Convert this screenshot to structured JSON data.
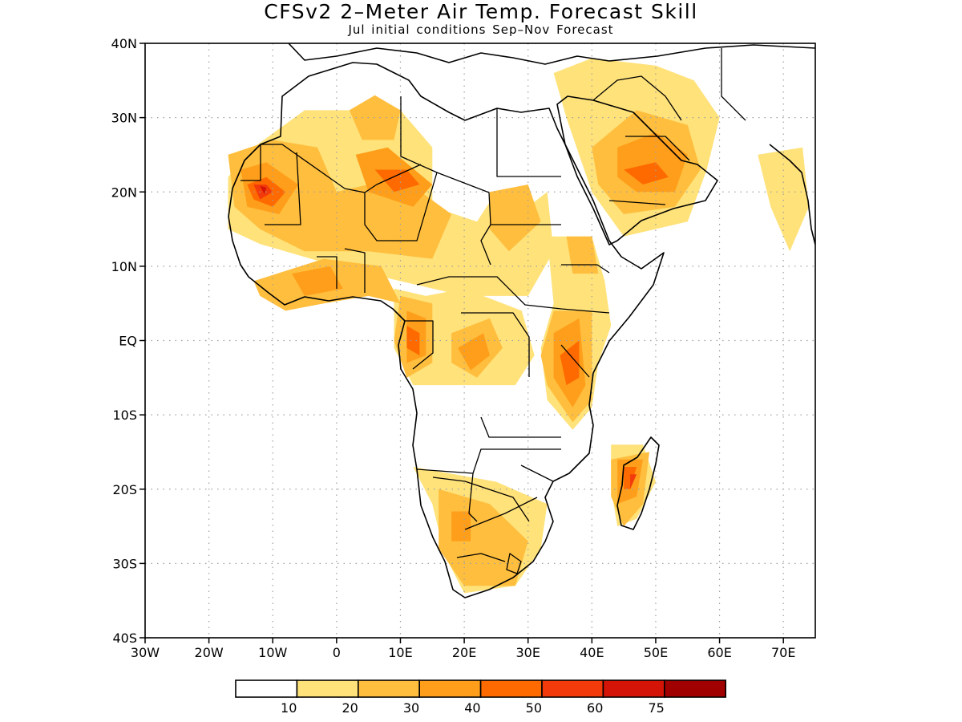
{
  "title": "CFSv2 2–Meter Air Temp. Forecast Skill",
  "subtitle": "Jul initial conditions   Sep–Nov Forecast",
  "map": {
    "region": "Africa",
    "lon_range": [
      -30,
      75
    ],
    "lat_range": [
      -40,
      40
    ],
    "lon_ticks": [
      -30,
      -20,
      -10,
      0,
      10,
      20,
      30,
      40,
      50,
      60,
      70
    ],
    "lon_tick_labels": [
      "30W",
      "20W",
      "10W",
      "0",
      "10E",
      "20E",
      "30E",
      "40E",
      "50E",
      "60E",
      "70E"
    ],
    "lat_ticks": [
      40,
      30,
      20,
      10,
      0,
      -10,
      -20,
      -30,
      -40
    ],
    "lat_tick_labels": [
      "40N",
      "30N",
      "20N",
      "10N",
      "EQ",
      "10S",
      "20S",
      "30S",
      "40S"
    ],
    "grid": "dotted"
  },
  "colorbar": {
    "boundaries": [
      "10",
      "20",
      "30",
      "40",
      "50",
      "60",
      "75"
    ],
    "colors": [
      "#ffffff",
      "#ffe27a",
      "#ffbe3d",
      "#ff9e1a",
      "#ff6a00",
      "#f23a0a",
      "#d41406",
      "#a10000"
    ]
  },
  "skill_regions": [
    {
      "level": 1,
      "points": [
        [
          -13,
          26
        ],
        [
          -5,
          31
        ],
        [
          10,
          31
        ],
        [
          15,
          26
        ],
        [
          15,
          18
        ],
        [
          22,
          16
        ],
        [
          25,
          20
        ],
        [
          27,
          16
        ],
        [
          33,
          20
        ],
        [
          34,
          12
        ],
        [
          30,
          6
        ],
        [
          20,
          6
        ],
        [
          10,
          8
        ],
        [
          0,
          10
        ],
        [
          -12,
          13
        ],
        [
          -17,
          15
        ],
        [
          -17,
          22
        ]
      ]
    },
    {
      "level": 1,
      "points": [
        [
          34,
          36
        ],
        [
          40,
          38
        ],
        [
          50,
          37
        ],
        [
          56,
          35
        ],
        [
          60,
          30
        ],
        [
          58,
          23
        ],
        [
          55,
          16
        ],
        [
          45,
          14
        ],
        [
          40,
          20
        ],
        [
          36,
          30
        ]
      ]
    },
    {
      "level": 1,
      "points": [
        [
          9,
          7
        ],
        [
          14,
          6
        ],
        [
          20,
          7
        ],
        [
          29,
          4
        ],
        [
          31,
          -2
        ],
        [
          28,
          -6
        ],
        [
          20,
          -6
        ],
        [
          12,
          -6
        ],
        [
          9,
          -1
        ]
      ]
    },
    {
      "level": 1,
      "points": [
        [
          33,
          14
        ],
        [
          40,
          14
        ],
        [
          42,
          8
        ],
        [
          43,
          2
        ],
        [
          41,
          -3
        ],
        [
          40,
          -9
        ],
        [
          37,
          -12
        ],
        [
          33,
          -8
        ],
        [
          32,
          -1
        ],
        [
          34,
          5
        ]
      ]
    },
    {
      "level": 1,
      "points": [
        [
          12,
          -17
        ],
        [
          25,
          -19
        ],
        [
          33,
          -22
        ],
        [
          32,
          -28
        ],
        [
          28,
          -33
        ],
        [
          20,
          -34
        ],
        [
          17,
          -29
        ],
        [
          15,
          -22
        ]
      ]
    },
    {
      "level": 1,
      "points": [
        [
          43,
          -14
        ],
        [
          48,
          -14
        ],
        [
          50,
          -19
        ],
        [
          47,
          -24
        ],
        [
          44,
          -25
        ],
        [
          43,
          -20
        ]
      ]
    },
    {
      "level": 1,
      "points": [
        [
          66,
          25
        ],
        [
          73,
          26
        ],
        [
          74,
          18
        ],
        [
          71,
          12
        ],
        [
          68,
          18
        ]
      ]
    },
    {
      "level": 2,
      "points": [
        [
          -17,
          25
        ],
        [
          -10,
          27
        ],
        [
          -3,
          26
        ],
        [
          0,
          20
        ],
        [
          10,
          22
        ],
        [
          18,
          17
        ],
        [
          15,
          11
        ],
        [
          5,
          12
        ],
        [
          -5,
          12
        ],
        [
          -12,
          15
        ],
        [
          -16,
          18
        ]
      ]
    },
    {
      "level": 2,
      "points": [
        [
          -13,
          8
        ],
        [
          -2,
          11
        ],
        [
          7,
          10
        ],
        [
          10,
          5
        ],
        [
          5,
          6
        ],
        [
          -2,
          5
        ],
        [
          -8,
          4
        ],
        [
          -12,
          6
        ]
      ]
    },
    {
      "level": 2,
      "points": [
        [
          2,
          31
        ],
        [
          6,
          33
        ],
        [
          10,
          31
        ],
        [
          9,
          27
        ],
        [
          4,
          27
        ]
      ]
    },
    {
      "level": 2,
      "points": [
        [
          40,
          26
        ],
        [
          47,
          31
        ],
        [
          55,
          29
        ],
        [
          57,
          23
        ],
        [
          53,
          18
        ],
        [
          45,
          17
        ],
        [
          41,
          21
        ]
      ]
    },
    {
      "level": 2,
      "points": [
        [
          36,
          14
        ],
        [
          40,
          14
        ],
        [
          41,
          9
        ],
        [
          37,
          9
        ]
      ]
    },
    {
      "level": 2,
      "points": [
        [
          34,
          4
        ],
        [
          40,
          4
        ],
        [
          40,
          -8
        ],
        [
          37,
          -11
        ],
        [
          33,
          -6
        ],
        [
          32,
          -2
        ]
      ]
    },
    {
      "level": 2,
      "points": [
        [
          10,
          6
        ],
        [
          15,
          5
        ],
        [
          15,
          -3
        ],
        [
          11,
          -5
        ],
        [
          9,
          0
        ]
      ]
    },
    {
      "level": 2,
      "points": [
        [
          18,
          1
        ],
        [
          24,
          3
        ],
        [
          26,
          -1
        ],
        [
          22,
          -5
        ],
        [
          18,
          -3
        ]
      ]
    },
    {
      "level": 2,
      "points": [
        [
          16,
          -20
        ],
        [
          24,
          -22
        ],
        [
          30,
          -27
        ],
        [
          28,
          -33
        ],
        [
          20,
          -33
        ],
        [
          16,
          -28
        ]
      ]
    },
    {
      "level": 2,
      "points": [
        [
          43,
          -16
        ],
        [
          49,
          -15
        ],
        [
          48,
          -22
        ],
        [
          45,
          -25
        ],
        [
          43,
          -21
        ]
      ]
    },
    {
      "level": 2,
      "points": [
        [
          24,
          20
        ],
        [
          30,
          21
        ],
        [
          32,
          16
        ],
        [
          27,
          12
        ],
        [
          24,
          15
        ]
      ]
    },
    {
      "level": 3,
      "points": [
        [
          -15,
          23
        ],
        [
          -11,
          24
        ],
        [
          -6,
          21
        ],
        [
          -9,
          17
        ],
        [
          -14,
          18
        ]
      ]
    },
    {
      "level": 3,
      "points": [
        [
          3,
          25
        ],
        [
          8,
          26
        ],
        [
          15,
          21
        ],
        [
          12,
          18
        ],
        [
          5,
          20
        ]
      ]
    },
    {
      "level": 3,
      "points": [
        [
          44,
          26
        ],
        [
          50,
          28
        ],
        [
          55,
          25
        ],
        [
          53,
          20
        ],
        [
          47,
          20
        ],
        [
          44,
          22
        ]
      ]
    },
    {
      "level": 3,
      "points": [
        [
          34,
          1
        ],
        [
          38,
          3
        ],
        [
          39,
          -6
        ],
        [
          37,
          -9
        ],
        [
          34,
          -5
        ]
      ]
    },
    {
      "level": 3,
      "points": [
        [
          11,
          4
        ],
        [
          14,
          3
        ],
        [
          14,
          -2
        ],
        [
          11,
          -3
        ]
      ]
    },
    {
      "level": 3,
      "points": [
        [
          19,
          -1
        ],
        [
          23,
          1
        ],
        [
          24,
          -2
        ],
        [
          21,
          -4
        ]
      ]
    },
    {
      "level": 3,
      "points": [
        [
          -7,
          9
        ],
        [
          -1,
          10
        ],
        [
          1,
          7
        ],
        [
          -5,
          6
        ]
      ]
    },
    {
      "level": 3,
      "points": [
        [
          44,
          -16
        ],
        [
          48,
          -16
        ],
        [
          47,
          -21
        ],
        [
          44,
          -22
        ]
      ]
    },
    {
      "level": 3,
      "points": [
        [
          18,
          -23
        ],
        [
          21,
          -23
        ],
        [
          21,
          -27
        ],
        [
          18,
          -27
        ]
      ]
    },
    {
      "level": 4,
      "points": [
        [
          -14,
          21
        ],
        [
          -11,
          22
        ],
        [
          -8,
          20
        ],
        [
          -10,
          18
        ],
        [
          -13,
          19
        ]
      ]
    },
    {
      "level": 4,
      "points": [
        [
          6,
          23
        ],
        [
          11,
          23
        ],
        [
          13,
          21
        ],
        [
          9,
          20
        ]
      ]
    },
    {
      "level": 4,
      "points": [
        [
          45,
          23
        ],
        [
          50,
          24
        ],
        [
          52,
          22
        ],
        [
          48,
          21
        ]
      ]
    },
    {
      "level": 4,
      "points": [
        [
          35,
          -2
        ],
        [
          38,
          0
        ],
        [
          38,
          -5
        ],
        [
          36,
          -6
        ]
      ]
    },
    {
      "level": 4,
      "points": [
        [
          11,
          2
        ],
        [
          13,
          1
        ],
        [
          13,
          -2
        ],
        [
          11,
          -1
        ]
      ]
    },
    {
      "level": 4,
      "points": [
        [
          45,
          -17
        ],
        [
          47,
          -17
        ],
        [
          46,
          -20
        ],
        [
          45,
          -20
        ]
      ]
    },
    {
      "level": 5,
      "points": [
        [
          -13,
          21
        ],
        [
          -11,
          21
        ],
        [
          -10,
          20
        ],
        [
          -12,
          19
        ]
      ]
    },
    {
      "level": 5,
      "points": [
        [
          46,
          -18
        ],
        [
          47,
          -18
        ],
        [
          46,
          -20
        ]
      ]
    },
    {
      "level": 6,
      "points": [
        [
          -12,
          20.8
        ],
        [
          -11,
          20.6
        ],
        [
          -11.3,
          19.7
        ]
      ]
    }
  ]
}
